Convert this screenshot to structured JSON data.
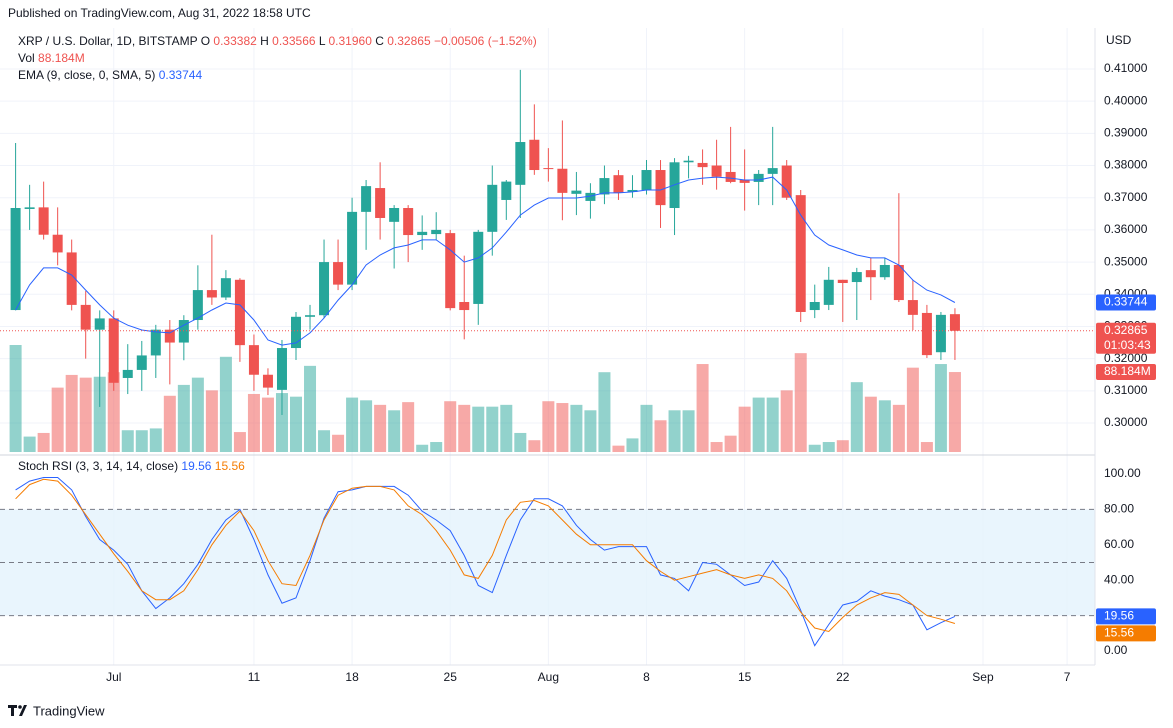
{
  "header": {
    "published": "Published on TradingView.com, Aug 31, 2022 18:58 UTC",
    "footer": "TradingView"
  },
  "chart_data": [
    {
      "type": "candlestick",
      "title": "XRP / U.S. Dollar, 1D, BITSTAMP",
      "ohlc_letters": [
        "O",
        "H",
        "L",
        "C"
      ],
      "ohlc_text": [
        "0.33382",
        "0.33566",
        "0.31960",
        "0.32865"
      ],
      "change_text": "−0.00506 (−1.52%)",
      "currency": "USD",
      "countdown": "01:03:43",
      "up_color": "#26a69a",
      "down_color": "#ef5350",
      "grid": true,
      "categories": [
        null,
        null,
        null,
        null,
        null,
        null,
        null,
        "Jul",
        null,
        null,
        null,
        null,
        null,
        null,
        null,
        null,
        null,
        "11",
        null,
        null,
        null,
        null,
        null,
        null,
        "18",
        null,
        null,
        null,
        null,
        null,
        null,
        "25",
        null,
        null,
        null,
        null,
        null,
        null,
        "Aug",
        null,
        null,
        null,
        null,
        null,
        null,
        "8",
        null,
        null,
        null,
        null,
        null,
        null,
        "15",
        null,
        null,
        null,
        null,
        null,
        null,
        "22",
        null,
        null,
        null,
        null,
        null,
        null,
        null,
        null,
        null,
        "Sep",
        null,
        null,
        null,
        null,
        null,
        "7"
      ],
      "open": [
        0.3351,
        0.3665,
        0.367,
        0.3585,
        0.353,
        0.3367,
        0.329,
        0.3325,
        0.314,
        0.3165,
        0.321,
        0.329,
        0.325,
        0.332,
        0.3413,
        0.339,
        0.3445,
        0.3242,
        0.315,
        0.3103,
        0.3233,
        0.333,
        0.3335,
        0.35,
        0.343,
        0.3656,
        0.373,
        0.3625,
        0.3668,
        0.3584,
        0.3587,
        0.359,
        0.3376,
        0.337,
        0.3594,
        0.3693,
        0.374,
        0.388,
        0.3792,
        0.379,
        0.3712,
        0.369,
        0.371,
        0.377,
        0.3718,
        0.3724,
        0.3786,
        0.3668,
        0.381,
        0.3808,
        0.38,
        0.378,
        0.3755,
        0.3749,
        0.3774,
        0.38,
        0.3708,
        0.3351,
        0.3367,
        0.3445,
        0.3438,
        0.3475,
        0.3453,
        0.3491,
        0.3382,
        0.3342,
        0.322,
        0.33382,
        null,
        null,
        null,
        null,
        null,
        null,
        null,
        null
      ],
      "high": [
        0.387,
        0.374,
        0.375,
        0.367,
        0.357,
        0.341,
        0.335,
        0.335,
        0.3245,
        0.3255,
        0.3305,
        0.332,
        0.3335,
        0.349,
        0.3585,
        0.3475,
        0.345,
        0.3275,
        0.317,
        0.3258,
        0.3345,
        0.3367,
        0.357,
        0.357,
        0.37,
        0.3755,
        0.381,
        0.3677,
        0.3677,
        0.3645,
        0.3655,
        0.36,
        0.352,
        0.36,
        0.38,
        0.3755,
        0.4097,
        0.399,
        0.3854,
        0.394,
        0.378,
        0.3745,
        0.38,
        0.3786,
        0.377,
        0.3817,
        0.3817,
        0.3823,
        0.383,
        0.385,
        0.388,
        0.392,
        0.385,
        0.3786,
        0.392,
        0.3817,
        0.3724,
        0.343,
        0.3485,
        0.3445,
        0.3482,
        0.3513,
        0.3513,
        0.3714,
        0.3445,
        0.3367,
        0.3345,
        0.33566,
        null,
        null,
        null,
        null,
        null,
        null,
        null,
        null
      ],
      "low": [
        0.335,
        0.36,
        0.357,
        0.349,
        0.335,
        0.32,
        0.305,
        0.31,
        0.309,
        0.31,
        0.314,
        0.312,
        0.3195,
        0.329,
        0.3367,
        0.3382,
        0.319,
        0.31,
        0.3087,
        0.3025,
        0.3196,
        0.329,
        0.3326,
        0.3413,
        0.3413,
        0.3538,
        0.357,
        0.348,
        0.35,
        0.3538,
        0.357,
        0.335,
        0.326,
        0.3305,
        0.352,
        0.3631,
        0.3637,
        0.3771,
        0.375,
        0.363,
        0.3646,
        0.3635,
        0.368,
        0.3693,
        0.37,
        0.371,
        0.3606,
        0.3584,
        0.376,
        0.374,
        0.3725,
        0.3745,
        0.366,
        0.3677,
        0.3677,
        0.3693,
        0.3314,
        0.3326,
        0.3351,
        0.3314,
        0.332,
        0.3382,
        0.3445,
        0.3376,
        0.3289,
        0.3202,
        0.3196,
        0.3196,
        null,
        null,
        null,
        null,
        null,
        null,
        null,
        null
      ],
      "close": [
        0.3668,
        0.367,
        0.3585,
        0.353,
        0.3367,
        0.329,
        0.3325,
        0.3125,
        0.3165,
        0.321,
        0.329,
        0.325,
        0.332,
        0.3413,
        0.339,
        0.345,
        0.3242,
        0.315,
        0.311,
        0.3233,
        0.333,
        0.3335,
        0.35,
        0.343,
        0.3656,
        0.3736,
        0.3637,
        0.3668,
        0.3584,
        0.3594,
        0.36,
        0.3357,
        0.3351,
        0.3594,
        0.374,
        0.375,
        0.3873,
        0.3786,
        0.3789,
        0.3715,
        0.3722,
        0.3715,
        0.3761,
        0.3715,
        0.3724,
        0.3786,
        0.3677,
        0.381,
        0.3815,
        0.3795,
        0.3765,
        0.3749,
        0.3746,
        0.3774,
        0.3792,
        0.37,
        0.3345,
        0.3376,
        0.3445,
        0.3435,
        0.3469,
        0.3453,
        0.3491,
        0.3382,
        0.3336,
        0.3211,
        0.3336,
        0.32865,
        null,
        null,
        null,
        null,
        null,
        null,
        null,
        null
      ],
      "volume": {
        "name": "Vol",
        "value_text": "88.184M",
        "values": [
          118,
          17,
          21,
          71,
          85,
          82,
          83,
          88,
          24,
          24,
          26,
          62,
          74,
          82,
          68,
          105,
          22,
          64,
          60,
          65,
          61,
          95,
          24,
          19,
          60,
          57,
          52,
          46,
          55,
          8,
          11,
          56,
          52,
          50,
          50,
          52,
          21,
          13,
          56,
          54,
          52,
          46,
          88,
          7,
          15,
          52,
          35,
          46,
          46,
          97,
          11,
          18,
          50,
          60,
          60,
          68,
          109,
          8,
          11,
          13,
          77,
          61,
          57,
          52,
          93,
          11,
          97,
          88.184,
          null,
          null,
          null,
          null,
          null,
          null,
          null,
          null
        ]
      },
      "series": [
        {
          "name": "EMA (9, close, 0, SMA, 5)",
          "color": "#2962ff",
          "values": [
            0.3351,
            0.3429,
            0.3482,
            0.3482,
            0.346,
            0.3413,
            0.3367,
            0.3326,
            0.3304,
            0.3289,
            0.3283,
            0.328,
            0.3304,
            0.3326,
            0.3351,
            0.3373,
            0.3367,
            0.332,
            0.3258,
            0.3242,
            0.3249,
            0.328,
            0.3326,
            0.3382,
            0.3429,
            0.3491,
            0.3522,
            0.3544,
            0.3553,
            0.3569,
            0.3569,
            0.3538,
            0.35,
            0.3513,
            0.3544,
            0.3593,
            0.3646,
            0.3677,
            0.3699,
            0.3699,
            0.3699,
            0.3705,
            0.3715,
            0.3715,
            0.3718,
            0.3724,
            0.3724,
            0.374,
            0.3755,
            0.3761,
            0.3764,
            0.3761,
            0.3755,
            0.3755,
            0.3764,
            0.3724,
            0.3646,
            0.3584,
            0.3553,
            0.3538,
            0.3522,
            0.3513,
            0.3513,
            0.3491,
            0.3444,
            0.3413,
            0.3398,
            0.33744,
            null,
            null,
            null,
            null,
            null,
            null,
            null,
            null
          ]
        }
      ],
      "ylim": [
        0.291,
        0.4221
      ],
      "yticks": [
        {
          "value": 0.3,
          "label": "0.30000"
        },
        {
          "value": 0.31,
          "label": "0.31000"
        },
        {
          "value": 0.32,
          "label": "0.32000"
        },
        {
          "value": 0.33,
          "label": "0.33000"
        },
        {
          "value": 0.34,
          "label": "0.34000"
        },
        {
          "value": 0.35,
          "label": "0.35000"
        },
        {
          "value": 0.36,
          "label": "0.36000"
        },
        {
          "value": 0.37,
          "label": "0.37000"
        },
        {
          "value": 0.38,
          "label": "0.38000"
        },
        {
          "value": 0.39,
          "label": "0.39000"
        },
        {
          "value": 0.4,
          "label": "0.40000"
        },
        {
          "value": 0.41,
          "label": "0.41000"
        }
      ]
    },
    {
      "type": "line",
      "title": "Stoch RSI (3, 3, 14, 14, close)",
      "series": [
        {
          "color": "#2962ff",
          "values": [
            91,
            96,
            98,
            98,
            91,
            76,
            63,
            57,
            49,
            34,
            24,
            30,
            38,
            49,
            63,
            74,
            80,
            63,
            43,
            27,
            30,
            51,
            75,
            90,
            91,
            93,
            93,
            93,
            88,
            79,
            74,
            68,
            54,
            37,
            33,
            54,
            74,
            86,
            86,
            82,
            71,
            63,
            57,
            59,
            59,
            59,
            43,
            41,
            34,
            50,
            49,
            43,
            37,
            39,
            51,
            41,
            23,
            3,
            15,
            26,
            28,
            34,
            31,
            29,
            26,
            12,
            16,
            19.56,
            null,
            null,
            null,
            null,
            null,
            null,
            null,
            null
          ]
        },
        {
          "color": "#f57c00",
          "values": [
            86,
            94,
            97,
            96,
            88,
            77,
            66,
            55,
            45,
            34,
            29,
            29,
            34,
            46,
            60,
            71,
            79,
            68,
            51,
            38,
            37,
            54,
            74,
            88,
            92,
            93,
            93,
            91,
            82,
            77,
            68,
            57,
            43,
            41,
            54,
            74,
            84,
            85,
            82,
            74,
            66,
            60,
            60,
            60,
            60,
            51,
            45,
            40,
            42,
            44,
            46,
            43,
            41,
            43,
            41,
            34,
            22,
            13,
            11,
            19,
            26,
            30,
            33,
            32,
            26,
            20,
            18,
            15.56,
            null,
            null,
            null,
            null,
            null,
            null,
            null,
            null
          ]
        }
      ],
      "levels": [
        20,
        50,
        80
      ],
      "band_color": "#e3f2fd",
      "ylim": [
        -7.9,
        109.6
      ],
      "yticks": [
        {
          "value": 0,
          "label": "0.00"
        },
        {
          "value": 40,
          "label": "40.00"
        },
        {
          "value": 60,
          "label": "60.00"
        },
        {
          "value": 80,
          "label": "80.00"
        },
        {
          "value": 100,
          "label": "100.00"
        }
      ]
    }
  ]
}
